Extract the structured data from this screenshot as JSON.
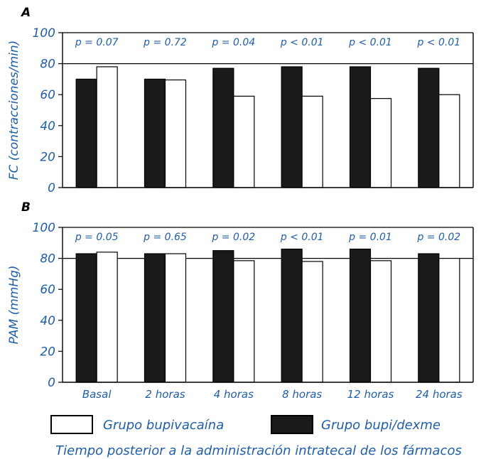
{
  "colors": {
    "blue_text": "#1f5fa8",
    "bar_dark": "#1a1a1a",
    "bar_light": "#ffffff",
    "axis": "#000000"
  },
  "chart_data": [
    {
      "type": "bar",
      "panel_label": "A",
      "ylabel": "FC (contracciones/min)",
      "ylim": [
        0,
        100
      ],
      "yticks": [
        0,
        20,
        40,
        60,
        80,
        100
      ],
      "grid": "horizontal at 80 and 100",
      "categories": [
        "Basal",
        "2 horas",
        "4 horas",
        "8 horas",
        "12 horas",
        "24 horas"
      ],
      "p_values": [
        "p = 0.07",
        "p = 0.72",
        "p = 0.04",
        "p < 0.01",
        "p < 0.01",
        "p < 0.01"
      ],
      "series": [
        {
          "name": "Grupo bupi/dexme",
          "color": "#1a1a1a",
          "values": [
            70,
            70,
            77,
            78,
            78,
            77
          ]
        },
        {
          "name": "Grupo bupivacaína",
          "color": "#ffffff",
          "values": [
            78,
            69.5,
            59,
            59,
            57.5,
            60
          ]
        }
      ]
    },
    {
      "type": "bar",
      "panel_label": "B",
      "ylabel": "PAM (mmHg)",
      "ylim": [
        0,
        100
      ],
      "yticks": [
        0,
        20,
        40,
        60,
        80,
        100
      ],
      "grid": "horizontal at 80 and 100",
      "categories": [
        "Basal",
        "2 horas",
        "4 horas",
        "8 horas",
        "12 horas",
        "24 horas"
      ],
      "p_values": [
        "p = 0.05",
        "p = 0.65",
        "p = 0.02",
        "p < 0.01",
        "p = 0.01",
        "p = 0.02"
      ],
      "series": [
        {
          "name": "Grupo bupi/dexme",
          "color": "#1a1a1a",
          "values": [
            83,
            83,
            85,
            86,
            86,
            83
          ]
        },
        {
          "name": "Grupo bupivacaína",
          "color": "#ffffff",
          "values": [
            84,
            83,
            78.5,
            78,
            78.5,
            80
          ]
        }
      ]
    }
  ],
  "legend": {
    "items": [
      "Grupo bupivacaína",
      "Grupo bupi/dexme"
    ]
  },
  "xlabel": "Tiempo posterior a la administración intratecal de los fármacos"
}
